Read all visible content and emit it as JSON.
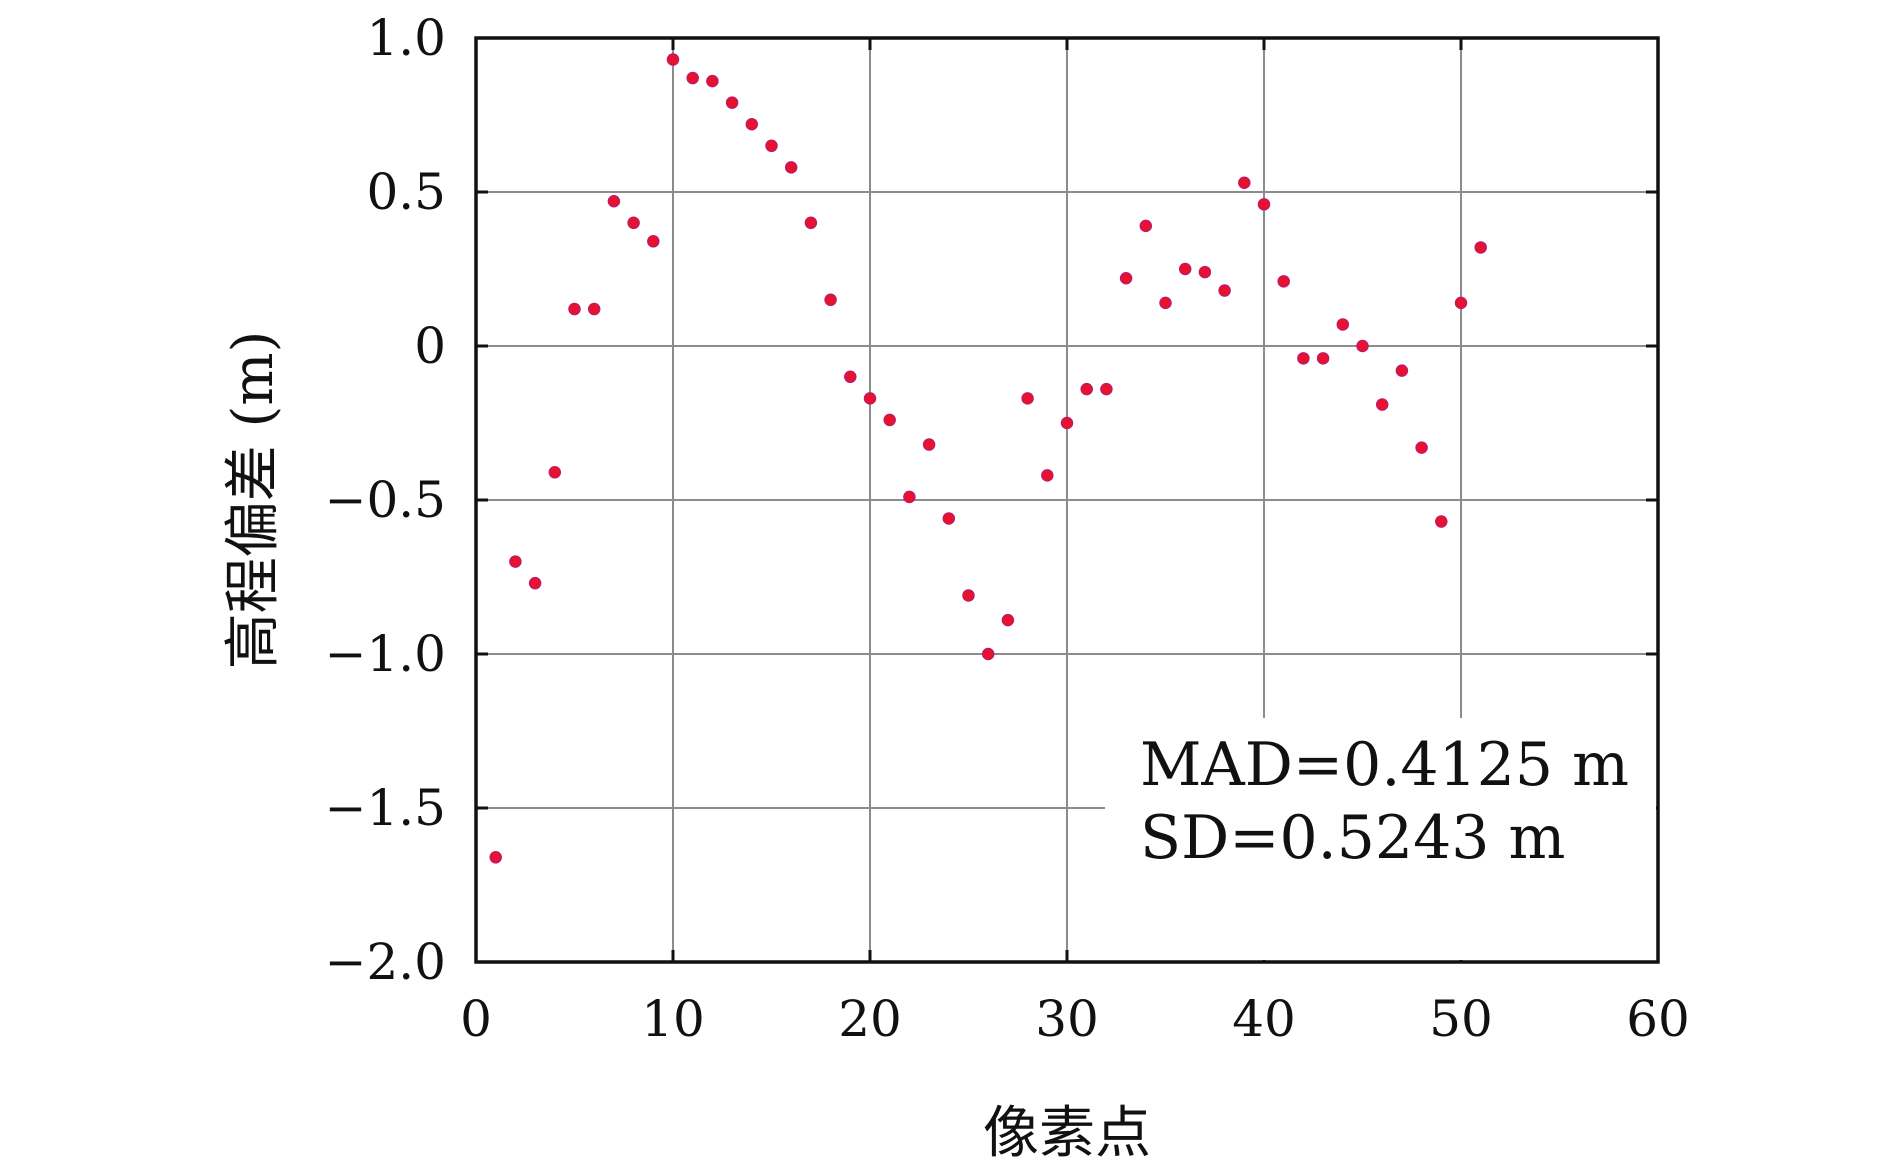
{
  "chart_data": {
    "type": "scatter",
    "xlabel": "像素点",
    "ylabel": "高程偏差 (m)",
    "xlim": [
      0,
      60
    ],
    "ylim": [
      -2.0,
      1.0
    ],
    "xticks": [
      0,
      10,
      20,
      30,
      40,
      50,
      60
    ],
    "xtick_labels": [
      "0",
      "10",
      "20",
      "30",
      "40",
      "50",
      "60"
    ],
    "yticks": [
      1.0,
      0.5,
      0,
      -0.5,
      -1.0,
      -1.5,
      -2.0
    ],
    "ytick_labels": [
      "1.0",
      "0.5",
      "0",
      "−0.5",
      "−1.0",
      "−1.5",
      "−2.0"
    ],
    "grid": true,
    "point_color": "#e8122a",
    "point_edge_color": "#c2186b",
    "annotations": [
      "MAD=0.4125 m",
      "SD=0.5243 m"
    ],
    "annotation_placement": "bottom-right",
    "x": [
      1,
      2,
      3,
      4,
      5,
      6,
      7,
      8,
      9,
      10,
      11,
      12,
      13,
      14,
      15,
      16,
      17,
      18,
      19,
      20,
      21,
      22,
      23,
      24,
      25,
      26,
      27,
      28,
      29,
      30,
      31,
      32,
      33,
      34,
      35,
      36,
      37,
      38,
      39,
      40,
      41,
      42,
      43,
      44,
      45,
      46,
      47,
      48,
      49,
      50,
      51
    ],
    "y": [
      -1.66,
      -0.7,
      -0.77,
      -0.41,
      0.12,
      0.12,
      0.47,
      0.4,
      0.34,
      0.93,
      0.87,
      0.86,
      0.79,
      0.72,
      0.65,
      0.58,
      0.4,
      0.15,
      -0.1,
      -0.17,
      -0.24,
      -0.49,
      -0.32,
      -0.56,
      -0.81,
      -1.0,
      -0.89,
      -0.17,
      -0.42,
      -0.25,
      -0.14,
      -0.14,
      0.22,
      0.39,
      0.14,
      0.25,
      0.24,
      0.18,
      0.53,
      0.46,
      0.21,
      -0.04,
      -0.04,
      0.07,
      0.0,
      -0.19,
      -0.08,
      -0.33,
      -0.57,
      0.14,
      0.32
    ]
  }
}
